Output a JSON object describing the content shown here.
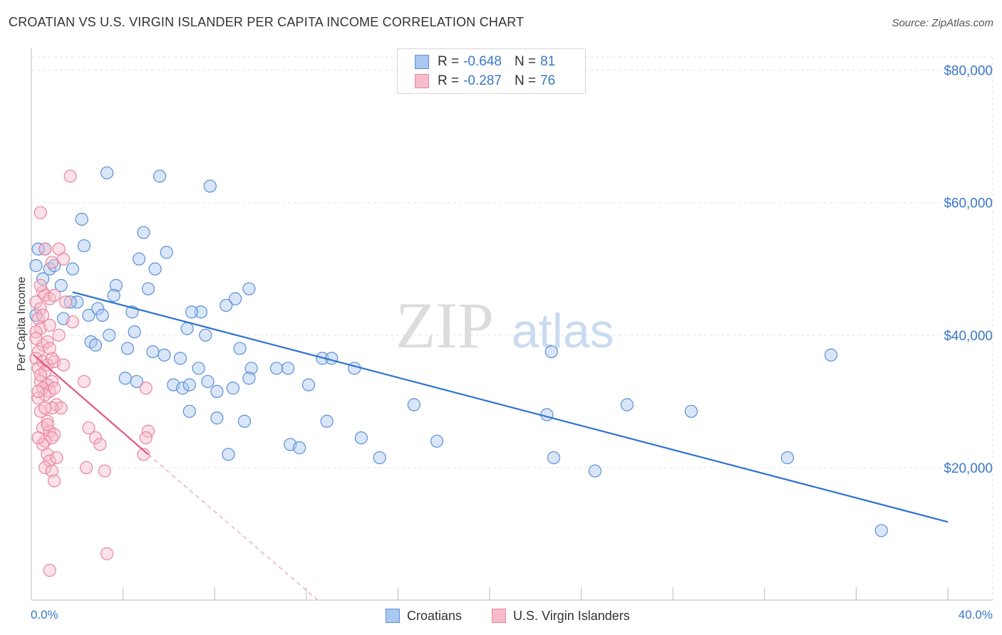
{
  "chart_data": {
    "type": "scatter",
    "title": "CROATIAN VS U.S. VIRGIN ISLANDER PER CAPITA INCOME CORRELATION CHART",
    "source": "Source: ZipAtlas.com",
    "xlabel": "",
    "ylabel": "Per Capita Income",
    "xlim": [
      0,
      40
    ],
    "ylim": [
      0,
      82000
    ],
    "x_tick_labels": [
      "0.0%",
      "40.0%"
    ],
    "y_ticks": [
      20000,
      40000,
      60000,
      80000
    ],
    "y_tick_labels": [
      "$20,000",
      "$40,000",
      "$60,000",
      "$80,000"
    ],
    "grid": true,
    "watermark": {
      "zip": "ZIP",
      "atlas": "atlas"
    },
    "legend": [
      {
        "series": "Croatians",
        "r_label": "R = ",
        "r_value": "-0.648",
        "n_label": "N = ",
        "n_value": "81"
      },
      {
        "series": "U.S. Virgin Islanders",
        "r_label": "R = ",
        "r_value": "-0.287",
        "n_label": "N = ",
        "n_value": "76"
      }
    ],
    "series": [
      {
        "name": "Croatians",
        "color": "#5b8fd6",
        "fill": "#aac8f0",
        "trend": {
          "x": [
            1.8,
            40.0
          ],
          "y": [
            46500,
            11800
          ],
          "color": "#2f72d0"
        },
        "points": [
          [
            0.2,
            50500
          ],
          [
            0.5,
            48500
          ],
          [
            0.8,
            50000
          ],
          [
            0.6,
            53000
          ],
          [
            0.3,
            53000
          ],
          [
            1.3,
            47500
          ],
          [
            1.8,
            50000
          ],
          [
            2.2,
            57500
          ],
          [
            2.3,
            53500
          ],
          [
            3.3,
            64500
          ],
          [
            5.6,
            64000
          ],
          [
            7.8,
            62500
          ],
          [
            4.9,
            55500
          ],
          [
            4.7,
            51500
          ],
          [
            5.4,
            50000
          ],
          [
            5.9,
            52500
          ],
          [
            3.7,
            47500
          ],
          [
            3.6,
            46000
          ],
          [
            5.1,
            47000
          ],
          [
            9.5,
            47000
          ],
          [
            8.9,
            45500
          ],
          [
            8.5,
            44500
          ],
          [
            7.4,
            43500
          ],
          [
            7.0,
            43500
          ],
          [
            4.4,
            43500
          ],
          [
            2.5,
            43000
          ],
          [
            2.9,
            44000
          ],
          [
            3.1,
            43000
          ],
          [
            1.4,
            42500
          ],
          [
            2.0,
            45000
          ],
          [
            1.7,
            45000
          ],
          [
            6.8,
            41000
          ],
          [
            7.6,
            40000
          ],
          [
            4.5,
            40500
          ],
          [
            3.4,
            40000
          ],
          [
            2.6,
            39000
          ],
          [
            2.8,
            38500
          ],
          [
            4.2,
            38000
          ],
          [
            5.3,
            37500
          ],
          [
            5.8,
            37000
          ],
          [
            6.5,
            36500
          ],
          [
            9.1,
            38000
          ],
          [
            12.7,
            36500
          ],
          [
            13.1,
            36500
          ],
          [
            10.7,
            35000
          ],
          [
            11.2,
            35000
          ],
          [
            14.1,
            35000
          ],
          [
            9.6,
            35000
          ],
          [
            7.3,
            35000
          ],
          [
            9.5,
            33500
          ],
          [
            4.1,
            33500
          ],
          [
            4.6,
            33000
          ],
          [
            6.2,
            32500
          ],
          [
            6.6,
            32000
          ],
          [
            6.9,
            32500
          ],
          [
            7.7,
            33000
          ],
          [
            8.1,
            31500
          ],
          [
            8.8,
            32000
          ],
          [
            12.1,
            32500
          ],
          [
            22.7,
            37500
          ],
          [
            34.9,
            37000
          ],
          [
            16.7,
            29500
          ],
          [
            26.0,
            29500
          ],
          [
            28.8,
            28500
          ],
          [
            22.5,
            28000
          ],
          [
            6.9,
            28500
          ],
          [
            8.1,
            27500
          ],
          [
            9.3,
            27000
          ],
          [
            12.9,
            27000
          ],
          [
            14.4,
            24500
          ],
          [
            17.7,
            24000
          ],
          [
            11.3,
            23500
          ],
          [
            11.7,
            23000
          ],
          [
            8.6,
            22000
          ],
          [
            15.2,
            21500
          ],
          [
            22.8,
            21500
          ],
          [
            33.0,
            21500
          ],
          [
            24.6,
            19500
          ],
          [
            37.1,
            10500
          ],
          [
            0.2,
            43000
          ],
          [
            1.0,
            50500
          ]
        ]
      },
      {
        "name": "U.S. Virgin Islanders",
        "color": "#e8859f",
        "fill": "#f6bccb",
        "trend": {
          "x": [
            0.1,
            5.1
          ],
          "y": [
            37000,
            22000
          ],
          "color": "#e05a84"
        },
        "trend_ext": {
          "x": [
            5.1,
            12.5
          ],
          "y": [
            22000,
            0
          ],
          "color": "#e8a0b6"
        },
        "points": [
          [
            0.2,
            45000
          ],
          [
            0.4,
            44000
          ],
          [
            0.5,
            46500
          ],
          [
            0.6,
            46000
          ],
          [
            0.8,
            45500
          ],
          [
            0.3,
            42500
          ],
          [
            0.4,
            41000
          ],
          [
            0.2,
            40500
          ],
          [
            0.5,
            38500
          ],
          [
            0.7,
            39000
          ],
          [
            0.3,
            37500
          ],
          [
            0.2,
            36500
          ],
          [
            0.5,
            36000
          ],
          [
            0.7,
            35500
          ],
          [
            1.0,
            36000
          ],
          [
            1.4,
            35500
          ],
          [
            0.3,
            35000
          ],
          [
            0.6,
            34500
          ],
          [
            0.9,
            33000
          ],
          [
            0.4,
            33000
          ],
          [
            0.7,
            32500
          ],
          [
            0.5,
            32000
          ],
          [
            0.8,
            31500
          ],
          [
            1.0,
            32000
          ],
          [
            0.6,
            31000
          ],
          [
            0.3,
            30500
          ],
          [
            1.1,
            29500
          ],
          [
            1.3,
            29000
          ],
          [
            0.4,
            28500
          ],
          [
            0.9,
            29000
          ],
          [
            0.7,
            27000
          ],
          [
            0.5,
            26000
          ],
          [
            0.8,
            25500
          ],
          [
            1.0,
            25000
          ],
          [
            0.6,
            24000
          ],
          [
            0.9,
            24500
          ],
          [
            0.5,
            23500
          ],
          [
            0.7,
            22000
          ],
          [
            0.8,
            21000
          ],
          [
            1.1,
            21500
          ],
          [
            0.6,
            20000
          ],
          [
            0.9,
            19500
          ],
          [
            1.0,
            18000
          ],
          [
            0.4,
            34000
          ],
          [
            0.8,
            41500
          ],
          [
            0.6,
            53000
          ],
          [
            0.9,
            51000
          ],
          [
            1.2,
            53000
          ],
          [
            1.4,
            51500
          ],
          [
            0.4,
            58500
          ],
          [
            1.7,
            64000
          ],
          [
            1.8,
            42000
          ],
          [
            2.3,
            33000
          ],
          [
            2.5,
            26000
          ],
          [
            2.8,
            24500
          ],
          [
            3.0,
            23500
          ],
          [
            3.2,
            19500
          ],
          [
            2.4,
            20000
          ],
          [
            5.0,
            32000
          ],
          [
            5.1,
            25500
          ],
          [
            5.0,
            24500
          ],
          [
            4.9,
            22000
          ],
          [
            3.3,
            7000
          ],
          [
            0.8,
            4500
          ],
          [
            0.2,
            39500
          ],
          [
            0.3,
            31500
          ],
          [
            0.6,
            29000
          ],
          [
            0.9,
            36500
          ],
          [
            0.5,
            43000
          ],
          [
            0.8,
            38000
          ],
          [
            1.2,
            40000
          ],
          [
            0.4,
            47500
          ],
          [
            1.0,
            46000
          ],
          [
            1.5,
            45000
          ],
          [
            0.7,
            26500
          ],
          [
            0.3,
            24500
          ]
        ]
      }
    ]
  }
}
